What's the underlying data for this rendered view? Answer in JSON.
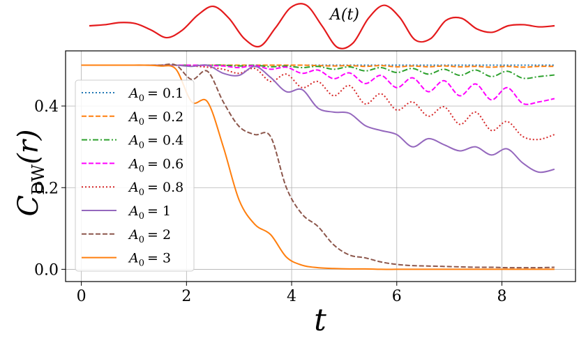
{
  "chart_data": [
    {
      "type": "line",
      "title": "A(t)",
      "description_role": "drive pulse inset",
      "x": [
        0,
        0.3,
        0.6,
        0.9,
        1.2,
        1.5,
        1.8,
        2.1,
        2.4,
        2.7,
        3.0,
        3.3,
        3.6,
        3.9,
        4.2,
        4.5,
        4.8,
        5.1,
        5.4,
        5.7,
        6.0,
        6.3,
        6.6,
        6.9,
        7.2,
        7.5,
        7.8,
        8.1,
        8.4,
        8.7,
        9.0
      ],
      "series": [
        {
          "name": "A(t)",
          "color": "#e41a1c",
          "values": [
            0.0,
            0.05,
            0.15,
            0.1,
            -0.2,
            -0.55,
            -0.2,
            0.5,
            0.9,
            0.35,
            -0.6,
            -0.95,
            -0.1,
            0.85,
            0.95,
            0.0,
            -1.0,
            -0.8,
            0.35,
            0.95,
            0.4,
            -0.65,
            -0.6,
            0.25,
            0.35,
            -0.15,
            -0.3,
            0.0,
            0.05,
            -0.05,
            0.0
          ]
        }
      ]
    },
    {
      "type": "line",
      "title": "",
      "xlabel": "t",
      "ylabel": "C_DW(r)",
      "ylabel_main": "C",
      "ylabel_sub": "DW",
      "ylabel_arg": "(r)",
      "xlim": [
        -0.3,
        9.4
      ],
      "ylim": [
        -0.03,
        0.535
      ],
      "xticks": [
        "0",
        "2",
        "4",
        "6",
        "8"
      ],
      "yticks": [
        "0.0",
        "0.2",
        "0.4"
      ],
      "xtick_values": [
        0,
        2,
        4,
        6,
        8
      ],
      "ytick_values": [
        0.0,
        0.2,
        0.4
      ],
      "grid": true,
      "legend_position": "left",
      "x": [
        0,
        0.3,
        0.6,
        0.9,
        1.2,
        1.5,
        1.8,
        2.1,
        2.4,
        2.7,
        3.0,
        3.3,
        3.6,
        3.9,
        4.2,
        4.5,
        4.8,
        5.1,
        5.4,
        5.7,
        6.0,
        6.3,
        6.6,
        6.9,
        7.2,
        7.5,
        7.8,
        8.1,
        8.4,
        8.7,
        9.0
      ],
      "series": [
        {
          "name": "A0 = 0.1",
          "label_var": "A",
          "label_sub": "0",
          "label_value": "= 0.1",
          "color": "#1f77b4",
          "dash": "dotted",
          "values": [
            0.5,
            0.5,
            0.5,
            0.5,
            0.5,
            0.5,
            0.5,
            0.5,
            0.5,
            0.5,
            0.5,
            0.5,
            0.5,
            0.5,
            0.5,
            0.5,
            0.5,
            0.5,
            0.5,
            0.5,
            0.5,
            0.5,
            0.5,
            0.5,
            0.5,
            0.5,
            0.5,
            0.5,
            0.5,
            0.5,
            0.5
          ]
        },
        {
          "name": "A0 = 0.2",
          "label_var": "A",
          "label_sub": "0",
          "label_value": "= 0.2",
          "color": "#ff7f0e",
          "dash": "dashed",
          "values": [
            0.5,
            0.5,
            0.5,
            0.5,
            0.5,
            0.5,
            0.5,
            0.5,
            0.5,
            0.5,
            0.5,
            0.5,
            0.5,
            0.5,
            0.5,
            0.499,
            0.498,
            0.499,
            0.497,
            0.499,
            0.496,
            0.498,
            0.496,
            0.498,
            0.496,
            0.497,
            0.495,
            0.497,
            0.495,
            0.497,
            0.497
          ]
        },
        {
          "name": "A0 = 0.4",
          "label_var": "A",
          "label_sub": "0",
          "label_value": "= 0.4",
          "color": "#2ca02c",
          "dash": "dashdot",
          "values": [
            0.5,
            0.5,
            0.5,
            0.5,
            0.5,
            0.5,
            0.5,
            0.5,
            0.5,
            0.5,
            0.498,
            0.5,
            0.496,
            0.498,
            0.494,
            0.497,
            0.49,
            0.496,
            0.486,
            0.494,
            0.482,
            0.492,
            0.478,
            0.49,
            0.475,
            0.488,
            0.472,
            0.485,
            0.468,
            0.472,
            0.476
          ]
        },
        {
          "name": "A0 = 0.6",
          "label_var": "A",
          "label_sub": "0",
          "label_value": "= 0.6",
          "color": "#ff00ff",
          "dash": "dashed",
          "values": [
            0.5,
            0.5,
            0.5,
            0.5,
            0.5,
            0.5,
            0.5,
            0.5,
            0.499,
            0.498,
            0.494,
            0.499,
            0.49,
            0.495,
            0.48,
            0.488,
            0.467,
            0.481,
            0.455,
            0.475,
            0.445,
            0.469,
            0.435,
            0.462,
            0.425,
            0.454,
            0.415,
            0.445,
            0.406,
            0.41,
            0.418
          ]
        },
        {
          "name": "A0 = 0.8",
          "label_var": "A",
          "label_sub": "0",
          "label_value": "= 0.8",
          "color": "#d62728",
          "dash": "dotted",
          "values": [
            0.5,
            0.5,
            0.5,
            0.5,
            0.5,
            0.5,
            0.5,
            0.498,
            0.495,
            0.49,
            0.48,
            0.492,
            0.46,
            0.478,
            0.445,
            0.46,
            0.425,
            0.45,
            0.405,
            0.43,
            0.39,
            0.41,
            0.375,
            0.398,
            0.355,
            0.385,
            0.34,
            0.362,
            0.325,
            0.318,
            0.33
          ]
        },
        {
          "name": "A0 = 1",
          "label_var": "A",
          "label_sub": "0",
          "label_value": "= 1",
          "color": "#9467bd",
          "dash": "solid",
          "values": [
            0.5,
            0.5,
            0.5,
            0.5,
            0.5,
            0.5,
            0.5,
            0.497,
            0.5,
            0.48,
            0.475,
            0.497,
            0.47,
            0.435,
            0.44,
            0.395,
            0.385,
            0.382,
            0.352,
            0.34,
            0.33,
            0.3,
            0.32,
            0.305,
            0.29,
            0.3,
            0.28,
            0.295,
            0.26,
            0.238,
            0.245
          ]
        },
        {
          "name": "A0 = 2",
          "label_var": "A",
          "label_sub": "0",
          "label_value": "= 2",
          "color": "#8c564b",
          "dash": "dashed",
          "values": [
            0.5,
            0.5,
            0.5,
            0.5,
            0.5,
            0.5,
            0.5,
            0.465,
            0.485,
            0.41,
            0.35,
            0.33,
            0.325,
            0.2,
            0.135,
            0.105,
            0.06,
            0.035,
            0.028,
            0.018,
            0.012,
            0.009,
            0.008,
            0.007,
            0.006,
            0.005,
            0.005,
            0.004,
            0.004,
            0.004,
            0.005
          ]
        },
        {
          "name": "A0 = 3",
          "label_var": "A",
          "label_sub": "0",
          "label_value": "= 3",
          "color": "#ff7f0e",
          "dash": "solid",
          "values": [
            0.5,
            0.5,
            0.5,
            0.5,
            0.5,
            0.498,
            0.49,
            0.41,
            0.41,
            0.3,
            0.17,
            0.11,
            0.085,
            0.03,
            0.01,
            0.004,
            0.002,
            0.001,
            0.001,
            0.0,
            0.0,
            0.0,
            0.0,
            0.0,
            0.0,
            0.0,
            0.0,
            0.0,
            0.0,
            0.0,
            0.0
          ]
        }
      ]
    }
  ]
}
